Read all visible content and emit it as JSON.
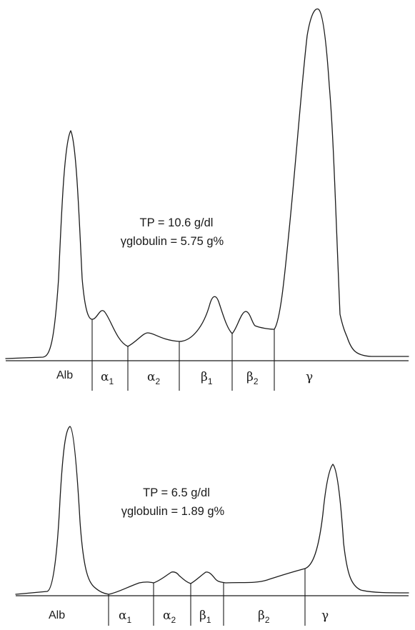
{
  "panels": [
    {
      "id": "top",
      "annotation_line1": "TP = 10.6 g/dl",
      "annotation_line2": "γglobulin = 5.75 g%",
      "fractions": [
        {
          "letter": "Alb",
          "sub": ""
        },
        {
          "letter": "α",
          "sub": "1"
        },
        {
          "letter": "α",
          "sub": "2"
        },
        {
          "letter": "β",
          "sub": "1"
        },
        {
          "letter": "β",
          "sub": "2"
        },
        {
          "letter": "γ",
          "sub": ""
        }
      ]
    },
    {
      "id": "bottom",
      "annotation_line1": "TP = 6.5 g/dl",
      "annotation_line2": "γglobulin = 1.89 g%",
      "fractions": [
        {
          "letter": "Alb",
          "sub": ""
        },
        {
          "letter": "α",
          "sub": "1"
        },
        {
          "letter": "α",
          "sub": "2"
        },
        {
          "letter": "β",
          "sub": "1"
        },
        {
          "letter": "β",
          "sub": "2"
        },
        {
          "letter": "γ",
          "sub": ""
        }
      ]
    }
  ]
}
